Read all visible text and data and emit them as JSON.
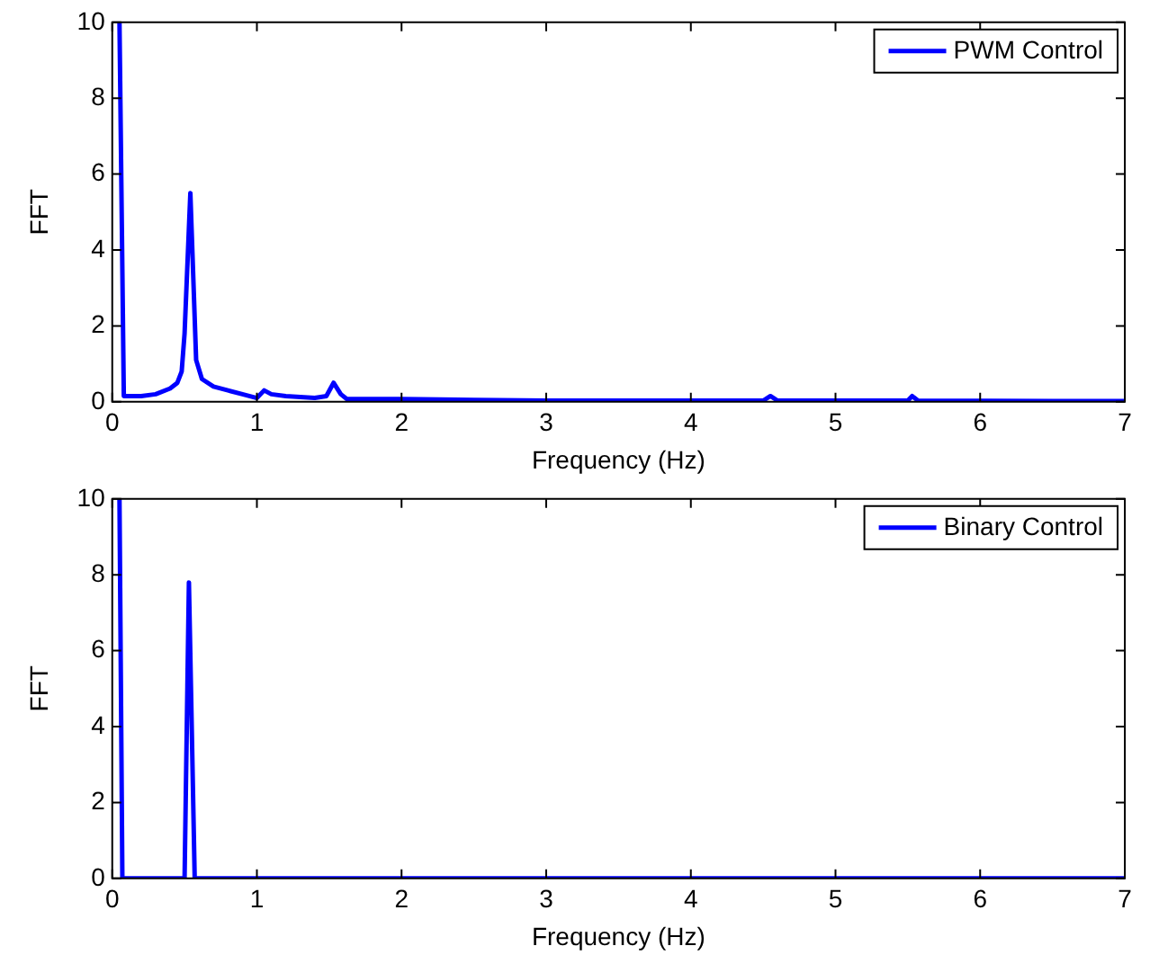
{
  "chart_data": [
    {
      "type": "line",
      "xlabel": "Frequency (Hz)",
      "ylabel": "FFT",
      "xlim": [
        0,
        7
      ],
      "xticks": [
        0,
        1,
        2,
        3,
        4,
        5,
        6,
        7
      ],
      "ylim": [
        0,
        10
      ],
      "yticks": [
        0,
        2,
        4,
        6,
        8,
        10
      ],
      "legend": "top right",
      "series": [
        {
          "name": "PWM Control",
          "color": "#0000ff",
          "x": [
            0.05,
            0.08,
            0.2,
            0.3,
            0.4,
            0.45,
            0.48,
            0.5,
            0.54,
            0.58,
            0.62,
            0.7,
            0.8,
            0.9,
            1.0,
            1.05,
            1.1,
            1.2,
            1.4,
            1.48,
            1.53,
            1.58,
            1.62,
            2,
            2.5,
            3,
            3.5,
            4,
            4.5,
            4.55,
            4.6,
            5.5,
            5.53,
            5.57,
            6.5,
            7
          ],
          "values": [
            10,
            0.15,
            0.15,
            0.2,
            0.35,
            0.5,
            0.8,
            1.8,
            5.5,
            1.1,
            0.6,
            0.4,
            0.3,
            0.2,
            0.1,
            0.3,
            0.2,
            0.15,
            0.1,
            0.15,
            0.5,
            0.2,
            0.08,
            0.07,
            0.05,
            0.03,
            0.03,
            0.03,
            0.03,
            0.15,
            0.03,
            0.03,
            0.15,
            0.03,
            0.02,
            0.02
          ]
        }
      ]
    },
    {
      "type": "line",
      "xlabel": "Frequency (Hz)",
      "ylabel": "FFT",
      "xlim": [
        0,
        7
      ],
      "xticks": [
        0,
        1,
        2,
        3,
        4,
        5,
        6,
        7
      ],
      "ylim": [
        0,
        10
      ],
      "yticks": [
        0,
        2,
        4,
        6,
        8,
        10
      ],
      "legend": "top right",
      "series": [
        {
          "name": "Binary Control",
          "color": "#0000ff",
          "x": [
            0.05,
            0.07,
            0.5,
            0.53,
            0.57,
            7
          ],
          "values": [
            10,
            0,
            0,
            7.8,
            0,
            0
          ]
        }
      ]
    }
  ]
}
